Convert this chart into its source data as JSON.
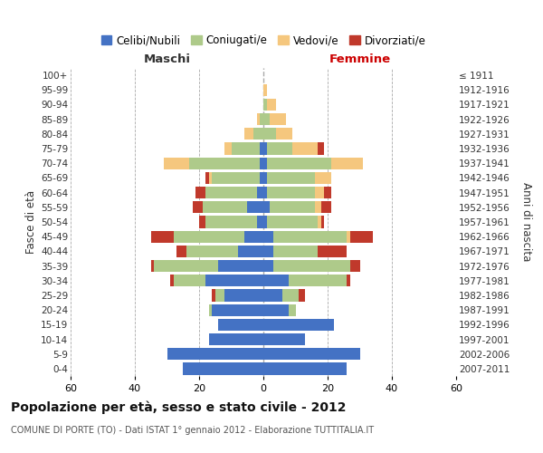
{
  "age_groups": [
    "0-4",
    "5-9",
    "10-14",
    "15-19",
    "20-24",
    "25-29",
    "30-34",
    "35-39",
    "40-44",
    "45-49",
    "50-54",
    "55-59",
    "60-64",
    "65-69",
    "70-74",
    "75-79",
    "80-84",
    "85-89",
    "90-94",
    "95-99",
    "100+"
  ],
  "birth_years": [
    "2007-2011",
    "2002-2006",
    "1997-2001",
    "1992-1996",
    "1987-1991",
    "1982-1986",
    "1977-1981",
    "1972-1976",
    "1967-1971",
    "1962-1966",
    "1957-1961",
    "1952-1956",
    "1947-1951",
    "1942-1946",
    "1937-1941",
    "1932-1936",
    "1927-1931",
    "1922-1926",
    "1917-1921",
    "1912-1916",
    "≤ 1911"
  ],
  "maschi": {
    "celibi": [
      25,
      30,
      17,
      14,
      16,
      12,
      18,
      14,
      8,
      6,
      2,
      5,
      2,
      1,
      1,
      1,
      0,
      0,
      0,
      0,
      0
    ],
    "coniugati": [
      0,
      0,
      0,
      0,
      1,
      3,
      10,
      20,
      16,
      22,
      16,
      14,
      16,
      15,
      22,
      9,
      3,
      1,
      0,
      0,
      0
    ],
    "vedovi": [
      0,
      0,
      0,
      0,
      0,
      0,
      0,
      0,
      0,
      0,
      0,
      0,
      0,
      1,
      8,
      2,
      3,
      1,
      0,
      0,
      0
    ],
    "divorziati": [
      0,
      0,
      0,
      0,
      0,
      1,
      1,
      1,
      3,
      7,
      2,
      3,
      3,
      1,
      0,
      0,
      0,
      0,
      0,
      0,
      0
    ]
  },
  "femmine": {
    "nubili": [
      26,
      30,
      13,
      22,
      8,
      6,
      8,
      3,
      3,
      3,
      1,
      2,
      1,
      1,
      1,
      1,
      0,
      0,
      0,
      0,
      0
    ],
    "coniugate": [
      0,
      0,
      0,
      0,
      2,
      5,
      18,
      24,
      14,
      23,
      16,
      14,
      15,
      15,
      20,
      8,
      4,
      2,
      1,
      0,
      0
    ],
    "vedove": [
      0,
      0,
      0,
      0,
      0,
      0,
      0,
      0,
      0,
      1,
      1,
      2,
      3,
      5,
      10,
      8,
      5,
      5,
      3,
      1,
      0
    ],
    "divorziate": [
      0,
      0,
      0,
      0,
      0,
      2,
      1,
      3,
      9,
      7,
      1,
      3,
      2,
      0,
      0,
      2,
      0,
      0,
      0,
      0,
      0
    ]
  },
  "colors": {
    "celibi_nubili": "#4472C4",
    "coniugati": "#AECA8A",
    "vedovi": "#F5C77E",
    "divorziati": "#C0392B"
  },
  "xlim": 60,
  "title": "Popolazione per età, sesso e stato civile - 2012",
  "subtitle": "COMUNE DI PORTE (TO) - Dati ISTAT 1° gennaio 2012 - Elaborazione TUTTITALIA.IT",
  "xlabel_left": "Maschi",
  "xlabel_right": "Femmine",
  "ylabel_left": "Fasce di età",
  "ylabel_right": "Anni di nascita",
  "legend_labels": [
    "Celibi/Nubili",
    "Coniugati/e",
    "Vedovi/e",
    "Divorziati/e"
  ],
  "background_color": "#ffffff",
  "grid_color": "#cccccc"
}
